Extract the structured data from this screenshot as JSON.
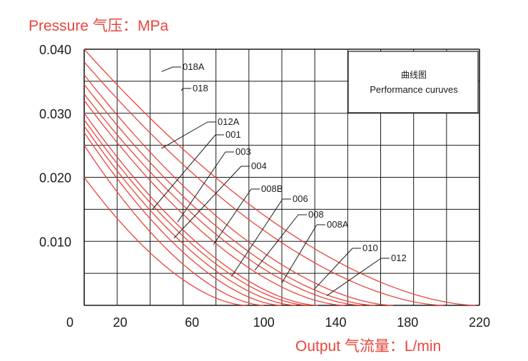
{
  "chart_data": {
    "type": "line",
    "title": "",
    "ylabel": "Pressure 气压：MPa",
    "xlabel": "Output 气流量：L/min",
    "legend_title": "曲线图",
    "legend_subtitle": "Performance curuves",
    "xlim": [
      0,
      220
    ],
    "ylim": [
      0,
      0.04
    ],
    "xticks": [
      0,
      20,
      60,
      100,
      140,
      180,
      220
    ],
    "xtick_labels": [
      "0",
      "20",
      "60",
      "100",
      "140",
      "180",
      "220"
    ],
    "yticks": [
      0.01,
      0.02,
      0.03,
      0.04
    ],
    "ytick_labels": [
      "0.010",
      "0.020",
      "0.030",
      "0.040"
    ],
    "grid": true,
    "curve_color": "#e8453c",
    "axis_color": "#1a1a1a",
    "series": [
      {
        "name": "018A",
        "p0": 0.04,
        "q0": 218,
        "label_at": [
          43,
          0.0365
        ]
      },
      {
        "name": "018",
        "p0": 0.038,
        "q0": 200,
        "label_at": [
          54,
          0.0335
        ]
      },
      {
        "name": "012A",
        "p0": 0.036,
        "q0": 172,
        "label_at": [
          43,
          0.0245
        ]
      },
      {
        "name": "001",
        "p0": 0.0345,
        "q0": 162,
        "label_at": [
          38,
          0.015
        ]
      },
      {
        "name": "003",
        "p0": 0.033,
        "q0": 155,
        "label_at": [
          52,
          0.013
        ]
      },
      {
        "name": "004",
        "p0": 0.032,
        "q0": 145,
        "label_at": [
          50,
          0.0105
        ]
      },
      {
        "name": "008B",
        "p0": 0.03,
        "q0": 130,
        "label_at": [
          72,
          0.0095
        ]
      },
      {
        "name": "006",
        "p0": 0.029,
        "q0": 125,
        "label_at": [
          82,
          0.0045
        ]
      },
      {
        "name": "008",
        "p0": 0.028,
        "q0": 118,
        "label_at": [
          95,
          0.0055
        ]
      },
      {
        "name": "008A",
        "p0": 0.027,
        "q0": 110,
        "label_at": [
          110,
          0.0035
        ]
      },
      {
        "name": "010",
        "p0": 0.025,
        "q0": 100,
        "label_at": [
          128,
          0.0025
        ]
      },
      {
        "name": "012",
        "p0": 0.02,
        "q0": 90,
        "label_at": [
          135,
          0.0015
        ]
      }
    ]
  }
}
